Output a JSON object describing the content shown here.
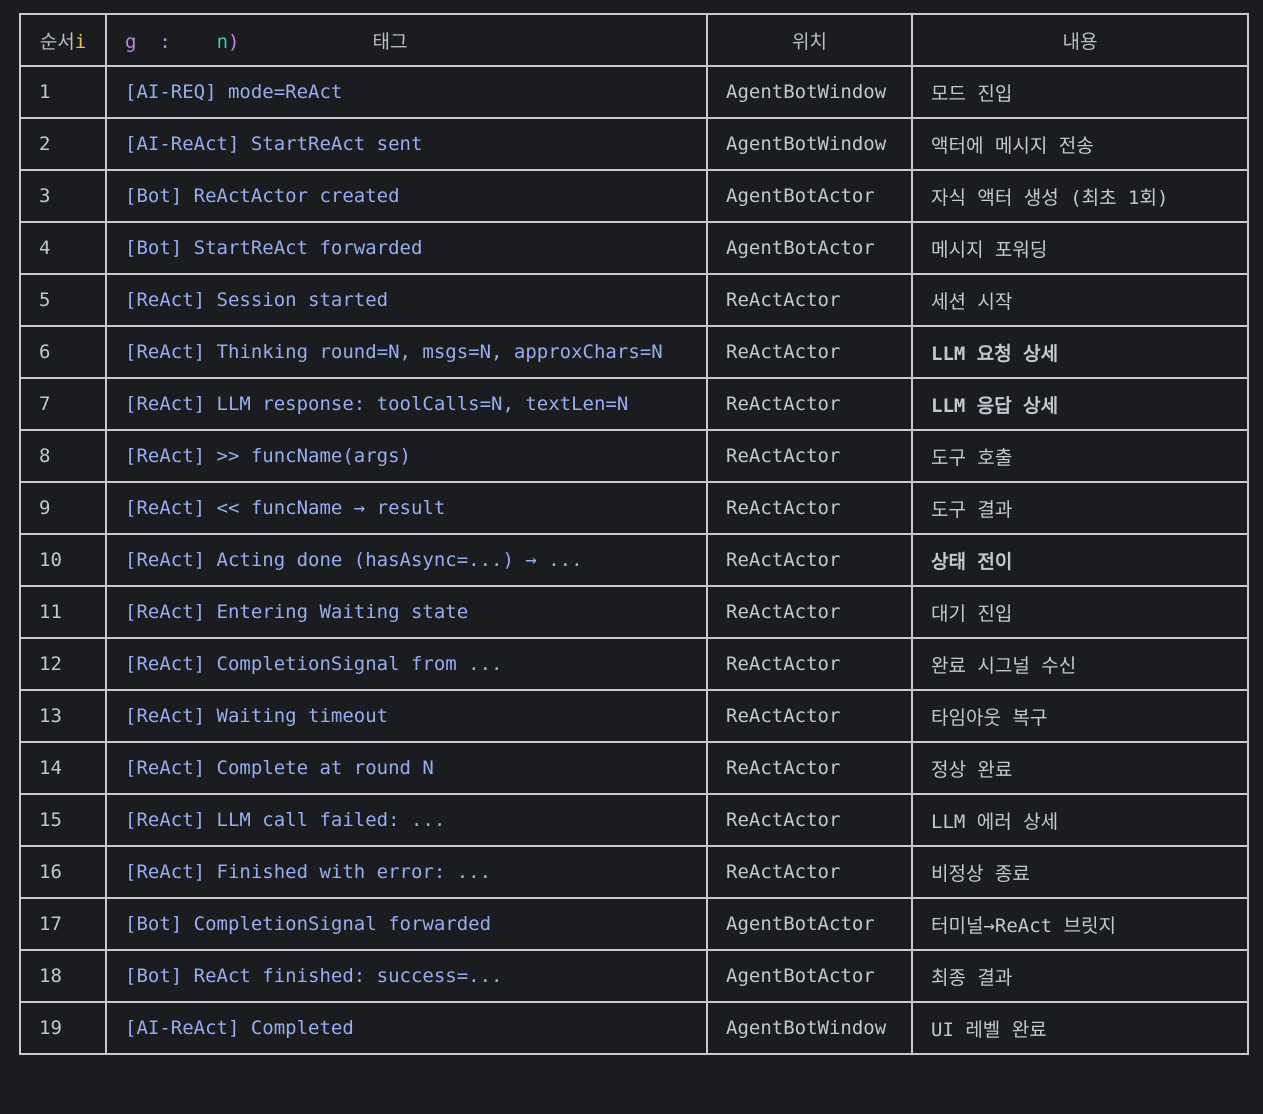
{
  "header": {
    "col1": "순서",
    "col1_artifact": "i",
    "col2_artifact_g": "g",
    "col2_artifact_colon": ":",
    "col2_artifact_n": "n",
    "col2_artifact_paren": ")",
    "col2": "태그",
    "col3": "위치",
    "col4": "내용"
  },
  "rows": [
    {
      "n": "1",
      "tag": "[AI-REQ] mode=ReAct",
      "loc": "AgentBotWindow",
      "desc": "모드 진입",
      "bold": false
    },
    {
      "n": "2",
      "tag": "[AI-ReAct] StartReAct sent",
      "loc": "AgentBotWindow",
      "desc": "액터에 메시지 전송",
      "bold": false
    },
    {
      "n": "3",
      "tag": "[Bot] ReActActor created",
      "loc": "AgentBotActor",
      "desc": "자식 액터 생성 (최초 1회)",
      "bold": false
    },
    {
      "n": "4",
      "tag": "[Bot] StartReAct forwarded",
      "loc": "AgentBotActor",
      "desc": "메시지 포워딩",
      "bold": false
    },
    {
      "n": "5",
      "tag": "[ReAct] Session started",
      "loc": "ReActActor",
      "desc": "세션 시작",
      "bold": false
    },
    {
      "n": "6",
      "tag": "[ReAct] Thinking round=N, msgs=N, approxChars=N",
      "loc": "ReActActor",
      "desc": "LLM 요청 상세",
      "bold": true
    },
    {
      "n": "7",
      "tag": "[ReAct] LLM response: toolCalls=N, textLen=N",
      "loc": "ReActActor",
      "desc": "LLM 응답 상세",
      "bold": true
    },
    {
      "n": "8",
      "tag": "[ReAct] >> funcName(args)",
      "loc": "ReActActor",
      "desc": "도구 호출",
      "bold": false
    },
    {
      "n": "9",
      "tag": "[ReAct] << funcName → result",
      "loc": "ReActActor",
      "desc": "도구 결과",
      "bold": false
    },
    {
      "n": "10",
      "tag": "[ReAct] Acting done (hasAsync=...) → ...",
      "loc": "ReActActor",
      "desc": "상태 전이",
      "bold": true
    },
    {
      "n": "11",
      "tag": "[ReAct] Entering Waiting state",
      "loc": "ReActActor",
      "desc": "대기 진입",
      "bold": false
    },
    {
      "n": "12",
      "tag": "[ReAct] CompletionSignal from ...",
      "loc": "ReActActor",
      "desc": "완료 시그널 수신",
      "bold": false
    },
    {
      "n": "13",
      "tag": "[ReAct] Waiting timeout",
      "loc": "ReActActor",
      "desc": "타임아웃 복구",
      "bold": false
    },
    {
      "n": "14",
      "tag": "[ReAct] Complete at round N",
      "loc": "ReActActor",
      "desc": "정상 완료",
      "bold": false
    },
    {
      "n": "15",
      "tag": "[ReAct] LLM call failed: ...",
      "loc": "ReActActor",
      "desc": "LLM 에러 상세",
      "bold": false
    },
    {
      "n": "16",
      "tag": "[ReAct] Finished with error: ...",
      "loc": "ReActActor",
      "desc": "비정상 종료",
      "bold": false
    },
    {
      "n": "17",
      "tag": "[Bot] CompletionSignal forwarded",
      "loc": "AgentBotActor",
      "desc": "터미널→ReAct 브릿지",
      "bold": false
    },
    {
      "n": "18",
      "tag": "[Bot] ReAct finished: success=...",
      "loc": "AgentBotActor",
      "desc": "최종 결과",
      "bold": false
    },
    {
      "n": "19",
      "tag": "[AI-ReAct] Completed",
      "loc": "AgentBotWindow",
      "desc": "UI 레벨 완료",
      "bold": false
    }
  ]
}
